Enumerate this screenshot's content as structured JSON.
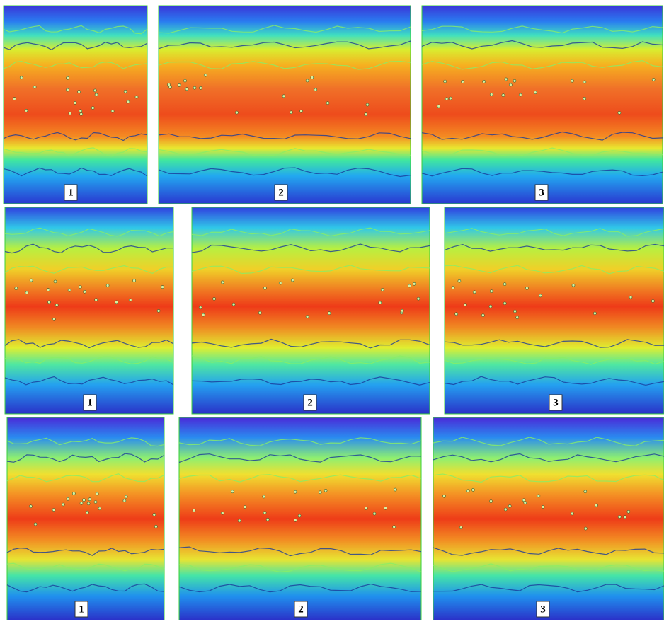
{
  "rows": [
    {
      "labels": [
        "1",
        "2",
        "3"
      ]
    },
    {
      "labels": [
        "1",
        "2",
        "3"
      ]
    },
    {
      "labels": [
        "1",
        "2",
        "3"
      ]
    }
  ]
}
